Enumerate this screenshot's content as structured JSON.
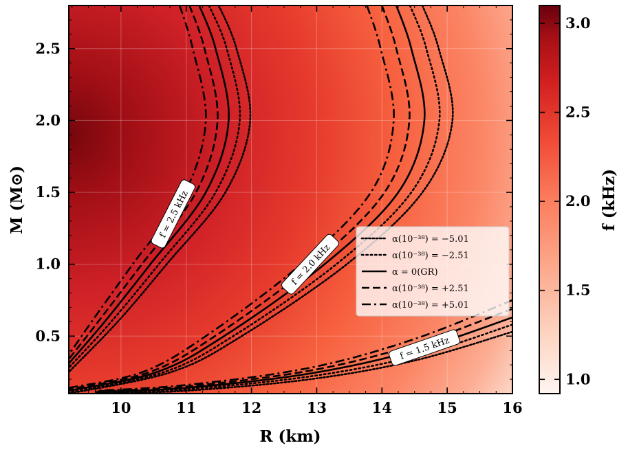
{
  "chart_data": {
    "type": "heatmap",
    "title": "",
    "xlabel": "R (km)",
    "ylabel": "M (M⊙)",
    "colorbar_label": "f (kHz)",
    "xlim": [
      9.2,
      16.0
    ],
    "ylim": [
      0.1,
      2.8
    ],
    "x_ticks": [
      10,
      11,
      12,
      13,
      14,
      15,
      16
    ],
    "y_ticks": [
      0.5,
      1.0,
      1.5,
      2.0,
      2.5
    ],
    "colorbar_range": [
      0.92,
      3.1
    ],
    "colorbar_ticks": [
      1.0,
      1.5,
      2.0,
      2.5,
      3.0
    ],
    "colormap": "Reds",
    "grid": true,
    "legend_position": "center-right",
    "contour_levels": [
      {
        "f": 2.5,
        "label": "f = 2.5 kHz"
      },
      {
        "f": 2.0,
        "label": "f = 2.0 kHz"
      },
      {
        "f": 1.5,
        "label": "f = 1.5 kHz"
      }
    ],
    "series": [
      {
        "name": "α(10⁻³⁸) = −5.01",
        "alpha": -5.01,
        "dash": "dotted-dense",
        "curves": {
          "2.5": [
            [
              11.98,
              2.0
            ],
            [
              11.77,
              2.5
            ],
            [
              11.5,
              2.8
            ],
            [
              11.6,
              1.5
            ],
            [
              10.7,
              1.0
            ],
            [
              9.95,
              0.6
            ],
            [
              9.2,
              0.25
            ]
          ],
          "2.0": [
            [
              15.08,
              2.0
            ],
            [
              14.87,
              2.5
            ],
            [
              14.62,
              2.8
            ],
            [
              14.62,
              1.5
            ],
            [
              13.46,
              1.0
            ],
            [
              11.85,
              0.5
            ],
            [
              10.77,
              0.25
            ],
            [
              9.2,
              0.1
            ]
          ],
          "1.5": [
            [
              16.0,
              0.53
            ],
            [
              14.5,
              0.33
            ],
            [
              12.9,
              0.2
            ],
            [
              11.0,
              0.12
            ],
            [
              9.6,
              0.1
            ]
          ]
        }
      },
      {
        "name": "α(10⁻³⁸) = −2.51",
        "alpha": -2.51,
        "dash": "dotted",
        "curves": {
          "2.5": [
            [
              11.82,
              2.0
            ],
            [
              11.62,
              2.5
            ],
            [
              11.35,
              2.8
            ],
            [
              11.45,
              1.5
            ],
            [
              10.58,
              1.0
            ],
            [
              9.85,
              0.6
            ],
            [
              9.2,
              0.28
            ]
          ],
          "2.0": [
            [
              14.88,
              2.0
            ],
            [
              14.68,
              2.5
            ],
            [
              14.43,
              2.8
            ],
            [
              14.45,
              1.5
            ],
            [
              13.3,
              1.0
            ],
            [
              11.72,
              0.5
            ],
            [
              10.66,
              0.25
            ],
            [
              9.2,
              0.11
            ]
          ],
          "1.5": [
            [
              16.0,
              0.58
            ],
            [
              14.5,
              0.36
            ],
            [
              12.9,
              0.22
            ],
            [
              11.0,
              0.13
            ],
            [
              9.6,
              0.105
            ]
          ]
        }
      },
      {
        "name": "α = 0(GR)",
        "alpha": 0,
        "dash": "solid",
        "curves": {
          "2.5": [
            [
              11.65,
              2.0
            ],
            [
              11.45,
              2.5
            ],
            [
              11.2,
              2.8
            ],
            [
              11.3,
              1.5
            ],
            [
              10.45,
              1.0
            ],
            [
              9.75,
              0.6
            ],
            [
              9.2,
              0.31
            ]
          ],
          "2.0": [
            [
              14.65,
              2.0
            ],
            [
              14.45,
              2.5
            ],
            [
              14.22,
              2.8
            ],
            [
              14.25,
              1.5
            ],
            [
              13.12,
              1.0
            ],
            [
              11.58,
              0.5
            ],
            [
              10.55,
              0.25
            ],
            [
              9.2,
              0.12
            ]
          ],
          "1.5": [
            [
              16.0,
              0.63
            ],
            [
              14.5,
              0.4
            ],
            [
              12.9,
              0.24
            ],
            [
              11.0,
              0.14
            ],
            [
              9.6,
              0.11
            ]
          ]
        }
      },
      {
        "name": "α(10⁻³⁸) = +2.51",
        "alpha": 2.51,
        "dash": "dashed",
        "curves": {
          "2.5": [
            [
              11.48,
              2.0
            ],
            [
              11.28,
              2.5
            ],
            [
              11.05,
              2.8
            ],
            [
              11.15,
              1.5
            ],
            [
              10.32,
              1.0
            ],
            [
              9.65,
              0.6
            ],
            [
              9.2,
              0.34
            ]
          ],
          "2.0": [
            [
              14.42,
              2.0
            ],
            [
              14.22,
              2.5
            ],
            [
              14.0,
              2.8
            ],
            [
              14.04,
              1.5
            ],
            [
              12.94,
              1.0
            ],
            [
              11.44,
              0.5
            ],
            [
              10.44,
              0.25
            ],
            [
              9.2,
              0.13
            ]
          ],
          "1.5": [
            [
              16.0,
              0.69
            ],
            [
              14.5,
              0.44
            ],
            [
              12.9,
              0.26
            ],
            [
              11.0,
              0.15
            ],
            [
              9.6,
              0.115
            ]
          ]
        }
      },
      {
        "name": "α(10⁻³⁸) = +5.01",
        "alpha": 5.01,
        "dash": "dashdot",
        "curves": {
          "2.5": [
            [
              11.3,
              2.0
            ],
            [
              11.1,
              2.5
            ],
            [
              10.9,
              2.8
            ],
            [
              10.98,
              1.5
            ],
            [
              10.18,
              1.0
            ],
            [
              9.55,
              0.6
            ],
            [
              9.2,
              0.37
            ]
          ],
          "2.0": [
            [
              14.18,
              2.0
            ],
            [
              13.98,
              2.5
            ],
            [
              13.77,
              2.8
            ],
            [
              13.83,
              1.5
            ],
            [
              12.76,
              1.0
            ],
            [
              11.3,
              0.5
            ],
            [
              10.33,
              0.25
            ],
            [
              9.2,
              0.14
            ]
          ],
          "1.5": [
            [
              16.0,
              0.75
            ],
            [
              14.5,
              0.48
            ],
            [
              12.9,
              0.28
            ],
            [
              11.0,
              0.16
            ],
            [
              9.6,
              0.12
            ]
          ]
        }
      }
    ]
  }
}
